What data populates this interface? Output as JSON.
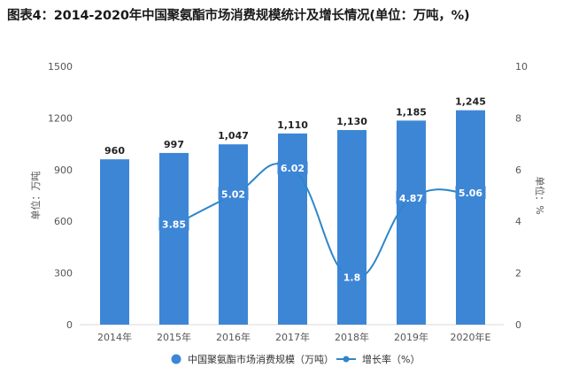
{
  "title": "图表4：2014-2020年中国聚氨酯市场消费规模统计及增长情况(单位：万吨，%)",
  "colors": {
    "bar": "#3d86d6",
    "line": "#2e86c8",
    "line_label_bg": "#3d86d6"
  },
  "chart_data": {
    "type": "bar",
    "categories": [
      "2014年",
      "2015年",
      "2016年",
      "2017年",
      "2018年",
      "2019年",
      "2020年E"
    ],
    "series": [
      {
        "name": "中国聚氨酯市场消费规模（万吨）",
        "type": "bar",
        "axis": "left",
        "values": [
          960,
          997,
          1047,
          1110,
          1130,
          1185,
          1245
        ],
        "labels": [
          "960",
          "997",
          "1,047",
          "1,110",
          "1,130",
          "1,185",
          "1,245"
        ]
      },
      {
        "name": "增长率（%）",
        "type": "line",
        "axis": "right",
        "values": [
          null,
          3.85,
          5.02,
          6.02,
          1.8,
          4.87,
          5.06
        ],
        "labels": [
          "",
          "3.85",
          "5.02",
          "6.02",
          "1.8",
          "4.87",
          "5.06"
        ]
      }
    ],
    "y_left": {
      "label": "单位：万吨",
      "ylim": [
        0,
        1500
      ],
      "ticks": [
        "0",
        "300",
        "600",
        "900",
        "1200",
        "1500"
      ]
    },
    "y_right": {
      "label": "单位：%",
      "ylim": [
        0,
        10
      ],
      "ticks": [
        "0",
        "2",
        "4",
        "6",
        "8",
        "10"
      ]
    },
    "legend": {
      "placement": "bottom"
    },
    "grid": false
  }
}
